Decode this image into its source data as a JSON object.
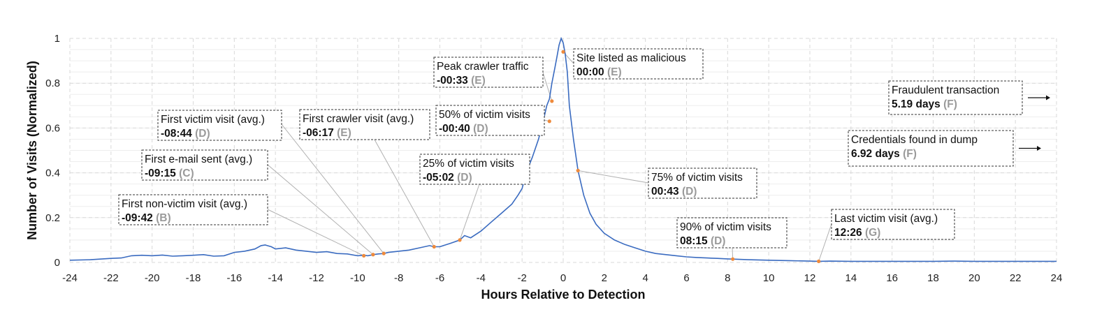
{
  "chart_data": {
    "type": "line",
    "title": "",
    "xlabel": "Hours Relative to Detection",
    "ylabel": "Number of Visits (Normalized)",
    "xlim": [
      -24,
      24
    ],
    "ylim": [
      0,
      1
    ],
    "x_ticks": [
      "-24",
      "-22",
      "-20",
      "-18",
      "-16",
      "-14",
      "-12",
      "-10",
      "-8",
      "-6",
      "-4",
      "-2",
      "0",
      "2",
      "4",
      "6",
      "8",
      "10",
      "12",
      "14",
      "16",
      "18",
      "20",
      "22",
      "24"
    ],
    "y_ticks": [
      "0",
      "0.2",
      "0.4",
      "0.6",
      "0.8",
      "1"
    ],
    "grid": true,
    "series": [
      {
        "x": [
          -24,
          -23,
          -22,
          -21.5,
          -21,
          -20.5,
          -20,
          -19.5,
          -19,
          -18.5,
          -18,
          -17.5,
          -17,
          -16.5,
          -16,
          -15.5,
          -15,
          -14.7,
          -14.5,
          -14.2,
          -14,
          -13.5,
          -13,
          -12.5,
          -12,
          -11.5,
          -11,
          -10.5,
          -10,
          -9.7,
          -9.5,
          -9.25,
          -9,
          -8.73,
          -8.5,
          -8,
          -7.5,
          -7,
          -6.5,
          -6.28,
          -6,
          -5.5,
          -5.03,
          -4.8,
          -4.5,
          -4,
          -3.5,
          -3,
          -2.5,
          -2.2,
          -2,
          -1.8,
          -1.5,
          -1.2,
          -1,
          -0.8,
          -0.67,
          -0.55,
          -0.4,
          -0.3,
          -0.2,
          -0.1,
          0,
          0.1,
          0.2,
          0.3,
          0.5,
          0.72,
          1,
          1.3,
          1.6,
          2,
          2.5,
          3,
          3.5,
          4,
          4.5,
          5,
          5.5,
          6,
          6.5,
          7,
          7.5,
          8,
          8.25,
          9,
          10,
          11,
          12,
          12.43,
          13,
          14,
          15,
          16,
          17,
          18,
          19,
          20,
          21,
          22,
          23,
          24
        ],
        "values": [
          0.01,
          0.012,
          0.018,
          0.02,
          0.03,
          0.032,
          0.03,
          0.033,
          0.028,
          0.03,
          0.032,
          0.035,
          0.028,
          0.03,
          0.045,
          0.05,
          0.06,
          0.075,
          0.078,
          0.07,
          0.06,
          0.065,
          0.055,
          0.05,
          0.045,
          0.048,
          0.04,
          0.038,
          0.03,
          0.032,
          0.03,
          0.035,
          0.038,
          0.04,
          0.045,
          0.05,
          0.055,
          0.065,
          0.075,
          0.07,
          0.07,
          0.085,
          0.1,
          0.12,
          0.11,
          0.14,
          0.18,
          0.22,
          0.26,
          0.3,
          0.33,
          0.4,
          0.47,
          0.55,
          0.62,
          0.7,
          0.73,
          0.8,
          0.87,
          0.92,
          0.97,
          1.0,
          0.98,
          0.93,
          0.85,
          0.7,
          0.55,
          0.41,
          0.3,
          0.22,
          0.17,
          0.13,
          0.1,
          0.08,
          0.065,
          0.05,
          0.04,
          0.035,
          0.03,
          0.025,
          0.022,
          0.02,
          0.018,
          0.016,
          0.015,
          0.012,
          0.01,
          0.008,
          0.006,
          0.005,
          0.006,
          0.005,
          0.005,
          0.005,
          0.005,
          0.005,
          0.006,
          0.005,
          0.005,
          0.005,
          0.005,
          0.005
        ]
      }
    ],
    "annotations": [
      {
        "title": "First non-victim visit (avg.)",
        "time": "-09:42",
        "code": "(B)",
        "x": -9.7,
        "y": 0.03
      },
      {
        "title": "First e-mail sent (avg.)",
        "time": "-09:15",
        "code": "(C)",
        "x": -9.25,
        "y": 0.035
      },
      {
        "title": "First victim visit (avg.)",
        "time": "-08:44",
        "code": "(D)",
        "x": -8.73,
        "y": 0.04
      },
      {
        "title": "First crawler visit (avg.)",
        "time": "-06:17",
        "code": "(E)",
        "x": -6.28,
        "y": 0.07
      },
      {
        "title": "25% of victim visits",
        "time": "-05:02",
        "code": "(D)",
        "x": -5.03,
        "y": 0.1
      },
      {
        "title": "50% of victim visits",
        "time": "-00:40",
        "code": "(D)",
        "x": -0.67,
        "y": 0.63
      },
      {
        "title": "Peak crawler traffic",
        "time": "-00:33",
        "code": "(E)",
        "x": -0.55,
        "y": 0.72
      },
      {
        "title": "Site listed as malicious",
        "time": "00:00",
        "code": "(E)",
        "x": 0.0,
        "y": 0.94
      },
      {
        "title": "75% of victim visits",
        "time": "00:43",
        "code": "(D)",
        "x": 0.72,
        "y": 0.41
      },
      {
        "title": "90% of victim visits",
        "time": "08:15",
        "code": "(D)",
        "x": 8.25,
        "y": 0.015
      },
      {
        "title": "Last victim visit (avg.)",
        "time": "12:26",
        "code": "(G)",
        "x": 12.43,
        "y": 0.005
      },
      {
        "title": "Fraudulent transaction",
        "time": "5.19 days",
        "code": "(F)",
        "offscale": true
      },
      {
        "title": "Credentials found in dump",
        "time": "6.92 days",
        "code": "(F)",
        "offscale": true
      }
    ]
  }
}
